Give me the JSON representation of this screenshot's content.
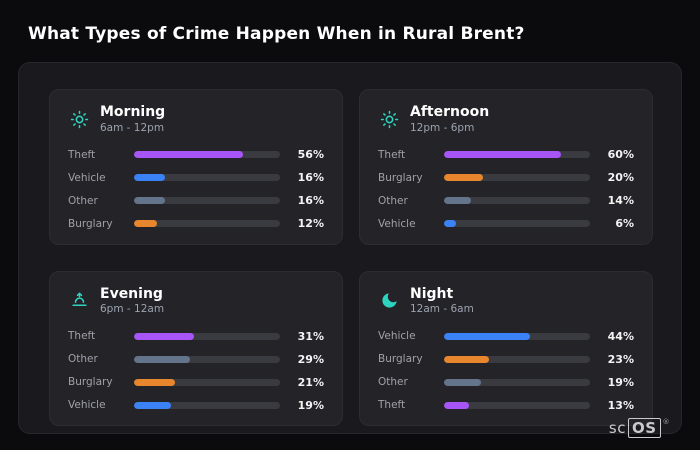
{
  "page": {
    "title": "What Types of Crime Happen When in Rural Brent?"
  },
  "brand": {
    "prefix": "sc",
    "boxed": "OS",
    "reg": "®"
  },
  "colors": {
    "theft": "#a855f7",
    "vehicle": "#3b82f6",
    "other": "#64748b",
    "burglary": "#e8862d",
    "icon_accent": "#2dd4bf",
    "track": "#3a3a41"
  },
  "chart_data": [
    {
      "type": "bar",
      "orientation": "horizontal",
      "title": "Morning",
      "subtitle": "6am - 12pm",
      "icon": "sun-icon",
      "xlim": [
        0,
        75
      ],
      "rows": [
        {
          "label": "Theft",
          "value": 56,
          "pct": "56%",
          "color": "#a855f7"
        },
        {
          "label": "Vehicle",
          "value": 16,
          "pct": "16%",
          "color": "#3b82f6"
        },
        {
          "label": "Other",
          "value": 16,
          "pct": "16%",
          "color": "#64748b"
        },
        {
          "label": "Burglary",
          "value": 12,
          "pct": "12%",
          "color": "#e8862d"
        }
      ]
    },
    {
      "type": "bar",
      "orientation": "horizontal",
      "title": "Afternoon",
      "subtitle": "12pm - 6pm",
      "icon": "sun-icon",
      "xlim": [
        0,
        75
      ],
      "rows": [
        {
          "label": "Theft",
          "value": 60,
          "pct": "60%",
          "color": "#a855f7"
        },
        {
          "label": "Burglary",
          "value": 20,
          "pct": "20%",
          "color": "#e8862d"
        },
        {
          "label": "Other",
          "value": 14,
          "pct": "14%",
          "color": "#64748b"
        },
        {
          "label": "Vehicle",
          "value": 6,
          "pct": "6%",
          "color": "#3b82f6"
        }
      ]
    },
    {
      "type": "bar",
      "orientation": "horizontal",
      "title": "Evening",
      "subtitle": "6pm - 12am",
      "icon": "sunset-icon",
      "xlim": [
        0,
        75
      ],
      "rows": [
        {
          "label": "Theft",
          "value": 31,
          "pct": "31%",
          "color": "#a855f7"
        },
        {
          "label": "Other",
          "value": 29,
          "pct": "29%",
          "color": "#64748b"
        },
        {
          "label": "Burglary",
          "value": 21,
          "pct": "21%",
          "color": "#e8862d"
        },
        {
          "label": "Vehicle",
          "value": 19,
          "pct": "19%",
          "color": "#3b82f6"
        }
      ]
    },
    {
      "type": "bar",
      "orientation": "horizontal",
      "title": "Night",
      "subtitle": "12am - 6am",
      "icon": "moon-icon",
      "xlim": [
        0,
        75
      ],
      "rows": [
        {
          "label": "Vehicle",
          "value": 44,
          "pct": "44%",
          "color": "#3b82f6"
        },
        {
          "label": "Burglary",
          "value": 23,
          "pct": "23%",
          "color": "#e8862d"
        },
        {
          "label": "Other",
          "value": 19,
          "pct": "19%",
          "color": "#64748b"
        },
        {
          "label": "Theft",
          "value": 13,
          "pct": "13%",
          "color": "#a855f7"
        }
      ]
    }
  ]
}
